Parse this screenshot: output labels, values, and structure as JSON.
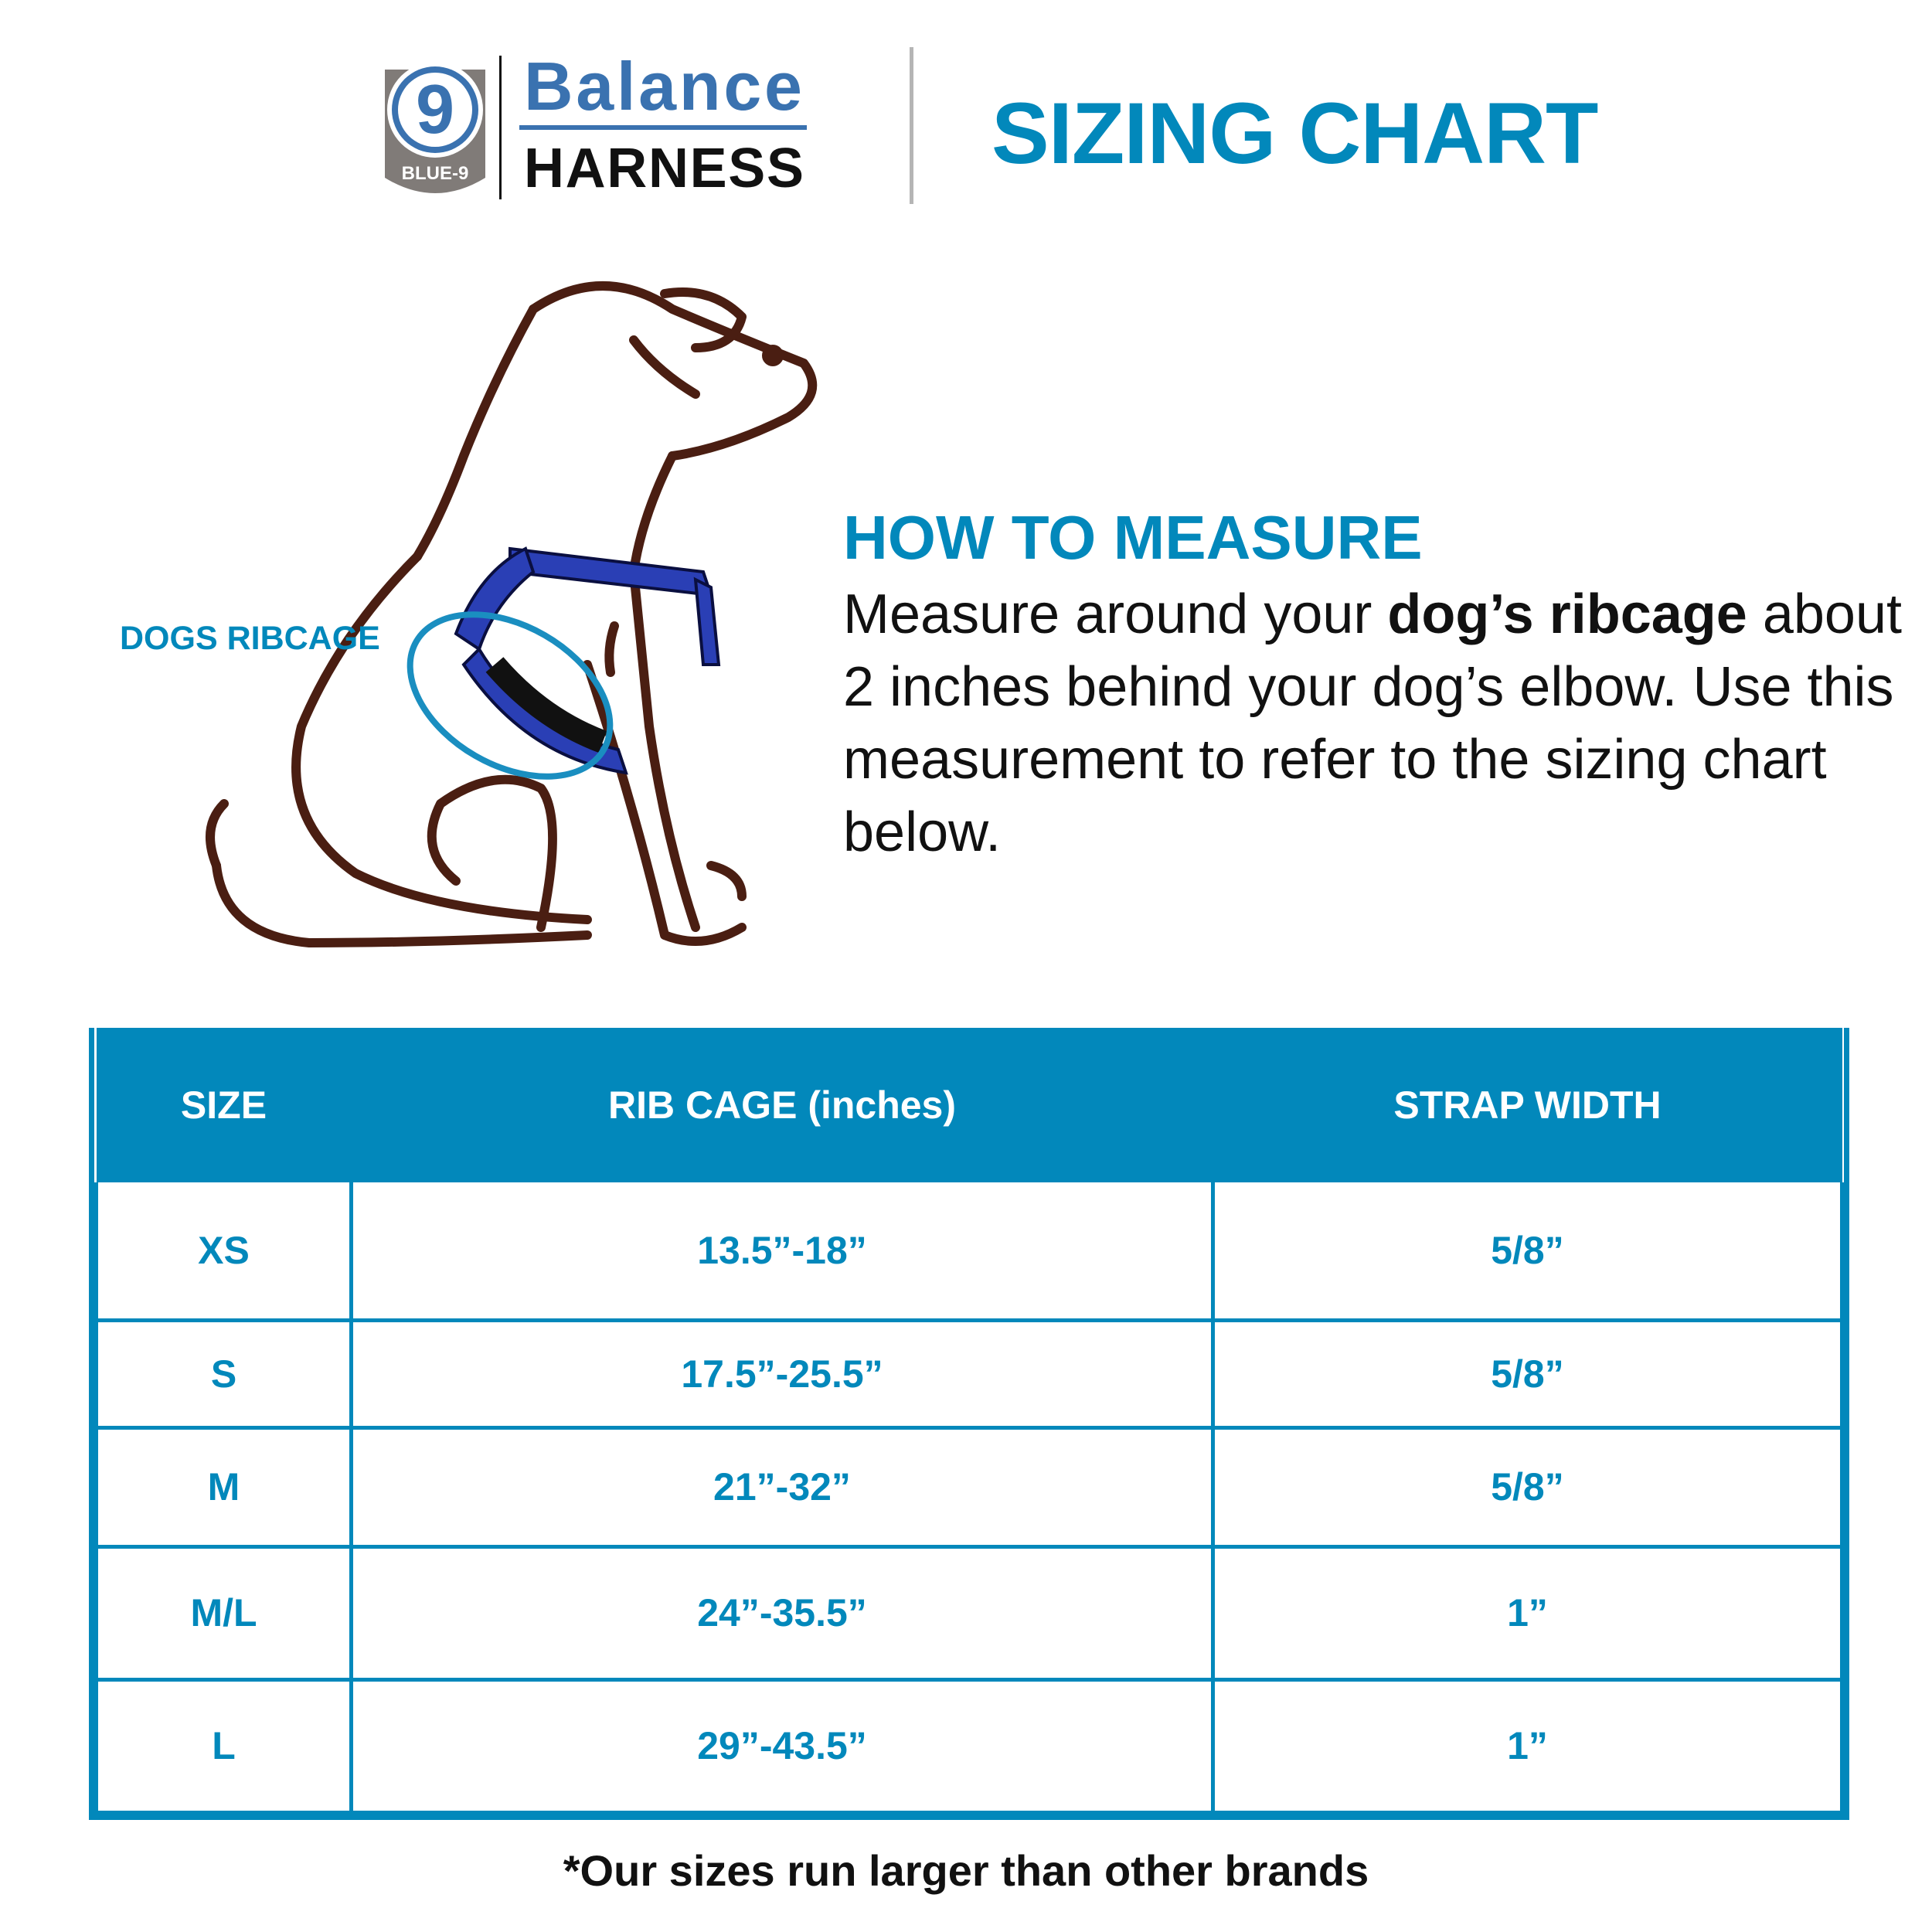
{
  "brand": {
    "badge_text": "BLUE-9",
    "badge_digit": "9",
    "name_top": "Balance",
    "name_bottom": "HARNESS",
    "colors": {
      "brand_blue": "#3a72b0",
      "badge_gray": "#807b78"
    }
  },
  "title": "SIZING CHART",
  "illustration": {
    "label": "DOGS RIBCAGE",
    "colors": {
      "outline": "#4a1e12",
      "harness": "#2a3fb5",
      "ring": "#1a8ec0"
    }
  },
  "how_to_measure": {
    "heading": "HOW TO MEASURE",
    "text_before": "Measure around your ",
    "text_bold": "dog’s ribcage",
    "text_after": " about 2 inches behind your dog’s elbow. Use this measurement to refer to the sizing chart below."
  },
  "table": {
    "headers": [
      "SIZE",
      "RIB CAGE (inches)",
      "STRAP WIDTH"
    ],
    "rows": [
      [
        "XS",
        "13.5”-18”",
        "5/8”"
      ],
      [
        "S",
        "17.5”-25.5”",
        "5/8”"
      ],
      [
        "M",
        "21”-32”",
        "5/8”"
      ],
      [
        "M/L",
        "24”-35.5”",
        "1”"
      ],
      [
        "L",
        "29”-43.5”",
        "1”"
      ]
    ]
  },
  "footer": "*Our sizes run larger than other brands",
  "colors": {
    "accent": "#0288bb"
  }
}
